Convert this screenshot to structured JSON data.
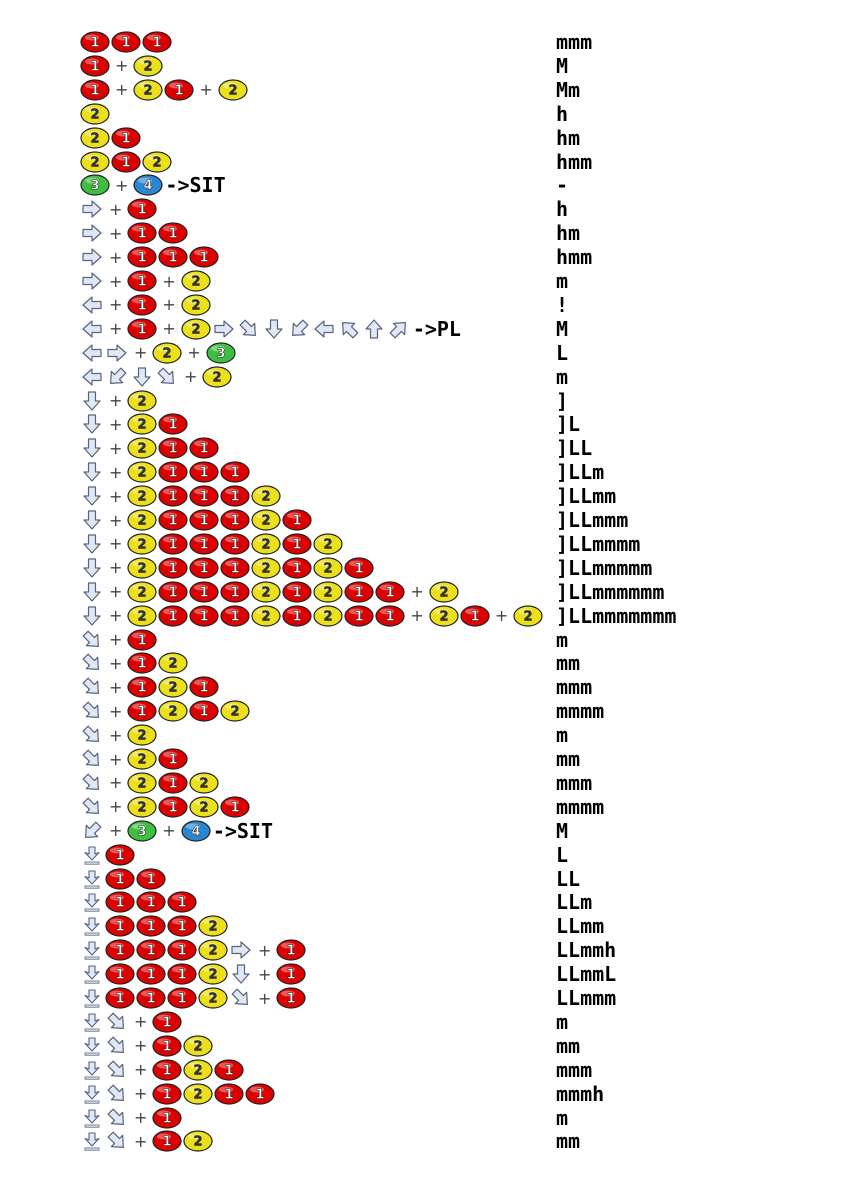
{
  "colors": {
    "button_1": "#dd0000",
    "button_2": "#ecdf1c",
    "button_3": "#3fbf3f",
    "button_4": "#2a86d0",
    "arrow_fill": "#dfe8f7",
    "arrow_stroke": "#5a6478"
  },
  "icon_legend": {
    "1": "button-1-icon",
    "2": "button-2-icon",
    "3": "button-3-icon",
    "4": "button-4-icon",
    "f": "arrow-forward-icon",
    "b": "arrow-back-icon",
    "d": "arrow-down-icon",
    "u": "arrow-up-icon",
    "df": "arrow-down-forward-icon",
    "db": "arrow-down-back-icon",
    "ub": "arrow-up-back-icon",
    "uf": "arrow-up-forward-icon",
    "ws": "while-standing-icon",
    "+": "plus"
  },
  "rows": [
    {
      "seq": [
        "1",
        "1",
        "1"
      ],
      "hits": "mmm"
    },
    {
      "seq": [
        "1",
        "+",
        "2"
      ],
      "hits": "M"
    },
    {
      "seq": [
        "1",
        "+",
        "2",
        "1",
        "+",
        "2"
      ],
      "hits": "Mm"
    },
    {
      "seq": [
        "2"
      ],
      "hits": "h"
    },
    {
      "seq": [
        "2",
        "1"
      ],
      "hits": "hm"
    },
    {
      "seq": [
        "2",
        "1",
        "2"
      ],
      "hits": "hmm"
    },
    {
      "seq": [
        "3",
        "+",
        "4",
        "t:->SIT"
      ],
      "hits": "-"
    },
    {
      "seq": [
        "f",
        "+",
        "1"
      ],
      "hits": "h"
    },
    {
      "seq": [
        "f",
        "+",
        "1",
        "1"
      ],
      "hits": "hm"
    },
    {
      "seq": [
        "f",
        "+",
        "1",
        "1",
        "1"
      ],
      "hits": "hmm"
    },
    {
      "seq": [
        "f",
        "+",
        "1",
        "+",
        "2"
      ],
      "hits": "m"
    },
    {
      "seq": [
        "b",
        "+",
        "1",
        "+",
        "2"
      ],
      "hits": "!"
    },
    {
      "seq": [
        "b",
        "+",
        "1",
        "+",
        "2",
        "f",
        "df",
        "d",
        "db",
        "b",
        "ub",
        "u",
        "uf",
        "t:->PL"
      ],
      "hits": "M"
    },
    {
      "seq": [
        "b",
        "f",
        "+",
        "2",
        "+",
        "3"
      ],
      "hits": "L"
    },
    {
      "seq": [
        "b",
        "db",
        "d",
        "df",
        "+",
        "2"
      ],
      "hits": "m"
    },
    {
      "seq": [
        "d",
        "+",
        "2"
      ],
      "hits": "]"
    },
    {
      "seq": [
        "d",
        "+",
        "2",
        "1"
      ],
      "hits": "]L"
    },
    {
      "seq": [
        "d",
        "+",
        "2",
        "1",
        "1"
      ],
      "hits": "]LL"
    },
    {
      "seq": [
        "d",
        "+",
        "2",
        "1",
        "1",
        "1"
      ],
      "hits": "]LLm"
    },
    {
      "seq": [
        "d",
        "+",
        "2",
        "1",
        "1",
        "1",
        "2"
      ],
      "hits": "]LLmm"
    },
    {
      "seq": [
        "d",
        "+",
        "2",
        "1",
        "1",
        "1",
        "2",
        "1"
      ],
      "hits": "]LLmmm"
    },
    {
      "seq": [
        "d",
        "+",
        "2",
        "1",
        "1",
        "1",
        "2",
        "1",
        "2"
      ],
      "hits": "]LLmmmm"
    },
    {
      "seq": [
        "d",
        "+",
        "2",
        "1",
        "1",
        "1",
        "2",
        "1",
        "2",
        "1"
      ],
      "hits": "]LLmmmmm"
    },
    {
      "seq": [
        "d",
        "+",
        "2",
        "1",
        "1",
        "1",
        "2",
        "1",
        "2",
        "1",
        "1",
        "+",
        "2"
      ],
      "hits": "]LLmmmmmm"
    },
    {
      "seq": [
        "d",
        "+",
        "2",
        "1",
        "1",
        "1",
        "2",
        "1",
        "2",
        "1",
        "1",
        "+",
        "2",
        "1",
        "+",
        "2"
      ],
      "hits": "]LLmmmmmmm"
    },
    {
      "seq": [
        "df",
        "+",
        "1"
      ],
      "hits": "m"
    },
    {
      "seq": [
        "df",
        "+",
        "1",
        "2"
      ],
      "hits": "mm"
    },
    {
      "seq": [
        "df",
        "+",
        "1",
        "2",
        "1"
      ],
      "hits": "mmm"
    },
    {
      "seq": [
        "df",
        "+",
        "1",
        "2",
        "1",
        "2"
      ],
      "hits": "mmmm"
    },
    {
      "seq": [
        "df",
        "+",
        "2"
      ],
      "hits": "m"
    },
    {
      "seq": [
        "df",
        "+",
        "2",
        "1"
      ],
      "hits": "mm"
    },
    {
      "seq": [
        "df",
        "+",
        "2",
        "1",
        "2"
      ],
      "hits": "mmm"
    },
    {
      "seq": [
        "df",
        "+",
        "2",
        "1",
        "2",
        "1"
      ],
      "hits": "mmmm"
    },
    {
      "seq": [
        "db",
        "+",
        "3",
        "+",
        "4",
        "t:->SIT"
      ],
      "hits": "M"
    },
    {
      "seq": [
        "ws",
        "1"
      ],
      "hits": "L"
    },
    {
      "seq": [
        "ws",
        "1",
        "1"
      ],
      "hits": "LL"
    },
    {
      "seq": [
        "ws",
        "1",
        "1",
        "1"
      ],
      "hits": "LLm"
    },
    {
      "seq": [
        "ws",
        "1",
        "1",
        "1",
        "2"
      ],
      "hits": "LLmm"
    },
    {
      "seq": [
        "ws",
        "1",
        "1",
        "1",
        "2",
        "f",
        "+",
        "1"
      ],
      "hits": "LLmmh"
    },
    {
      "seq": [
        "ws",
        "1",
        "1",
        "1",
        "2",
        "d",
        "+",
        "1"
      ],
      "hits": "LLmmL"
    },
    {
      "seq": [
        "ws",
        "1",
        "1",
        "1",
        "2",
        "df",
        "+",
        "1"
      ],
      "hits": "LLmmm"
    },
    {
      "seq": [
        "ws",
        "df",
        "+",
        "1"
      ],
      "hits": "m"
    },
    {
      "seq": [
        "ws",
        "df",
        "+",
        "1",
        "2"
      ],
      "hits": "mm"
    },
    {
      "seq": [
        "ws",
        "df",
        "+",
        "1",
        "2",
        "1"
      ],
      "hits": "mmm"
    },
    {
      "seq": [
        "ws",
        "df",
        "+",
        "1",
        "2",
        "1",
        "1"
      ],
      "hits": "mmmh"
    },
    {
      "seq": [
        "ws",
        "df",
        "+",
        "1"
      ],
      "hits": "m"
    },
    {
      "seq": [
        "ws",
        "df",
        "+",
        "1",
        "2"
      ],
      "hits": "mm"
    }
  ]
}
